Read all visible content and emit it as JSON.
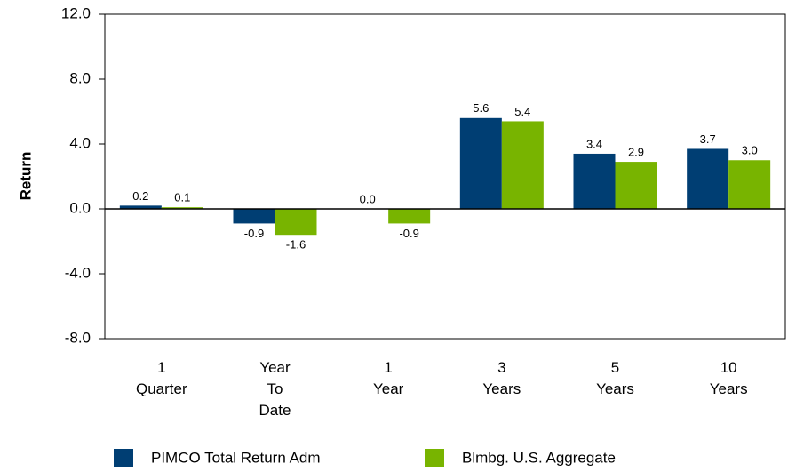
{
  "chart_data": {
    "type": "bar",
    "y_label": "Return",
    "categories": [
      [
        "1",
        "Quarter"
      ],
      [
        "Year",
        "To",
        "Date"
      ],
      [
        "1",
        "Year"
      ],
      [
        "3",
        "Years"
      ],
      [
        "5",
        "Years"
      ],
      [
        "10",
        "Years"
      ]
    ],
    "series": [
      {
        "name": "PIMCO Total Return Adm",
        "color": "#003e73",
        "values": [
          0.2,
          -0.9,
          0.0,
          5.6,
          3.4,
          3.7
        ],
        "value_labels": [
          "0.2",
          "-0.9",
          "0.0",
          "5.6",
          "3.4",
          "3.7"
        ]
      },
      {
        "name": "Blmbg. U.S. Aggregate",
        "color": "#78b400",
        "values": [
          0.1,
          -1.6,
          -0.9,
          5.4,
          2.9,
          3.0
        ],
        "value_labels": [
          "0.1",
          "-1.6",
          "-0.9",
          "5.4",
          "2.9",
          "3.0"
        ]
      }
    ],
    "ylim": [
      -8,
      12
    ],
    "yticks": [
      {
        "value": -8,
        "label": "-8.0"
      },
      {
        "value": -4,
        "label": "-4.0"
      },
      {
        "value": 0,
        "label": "0.0"
      },
      {
        "value": 4,
        "label": "4.0"
      },
      {
        "value": 8,
        "label": "8.0"
      },
      {
        "value": 12,
        "label": "12.0"
      }
    ],
    "legend": "bottom"
  }
}
